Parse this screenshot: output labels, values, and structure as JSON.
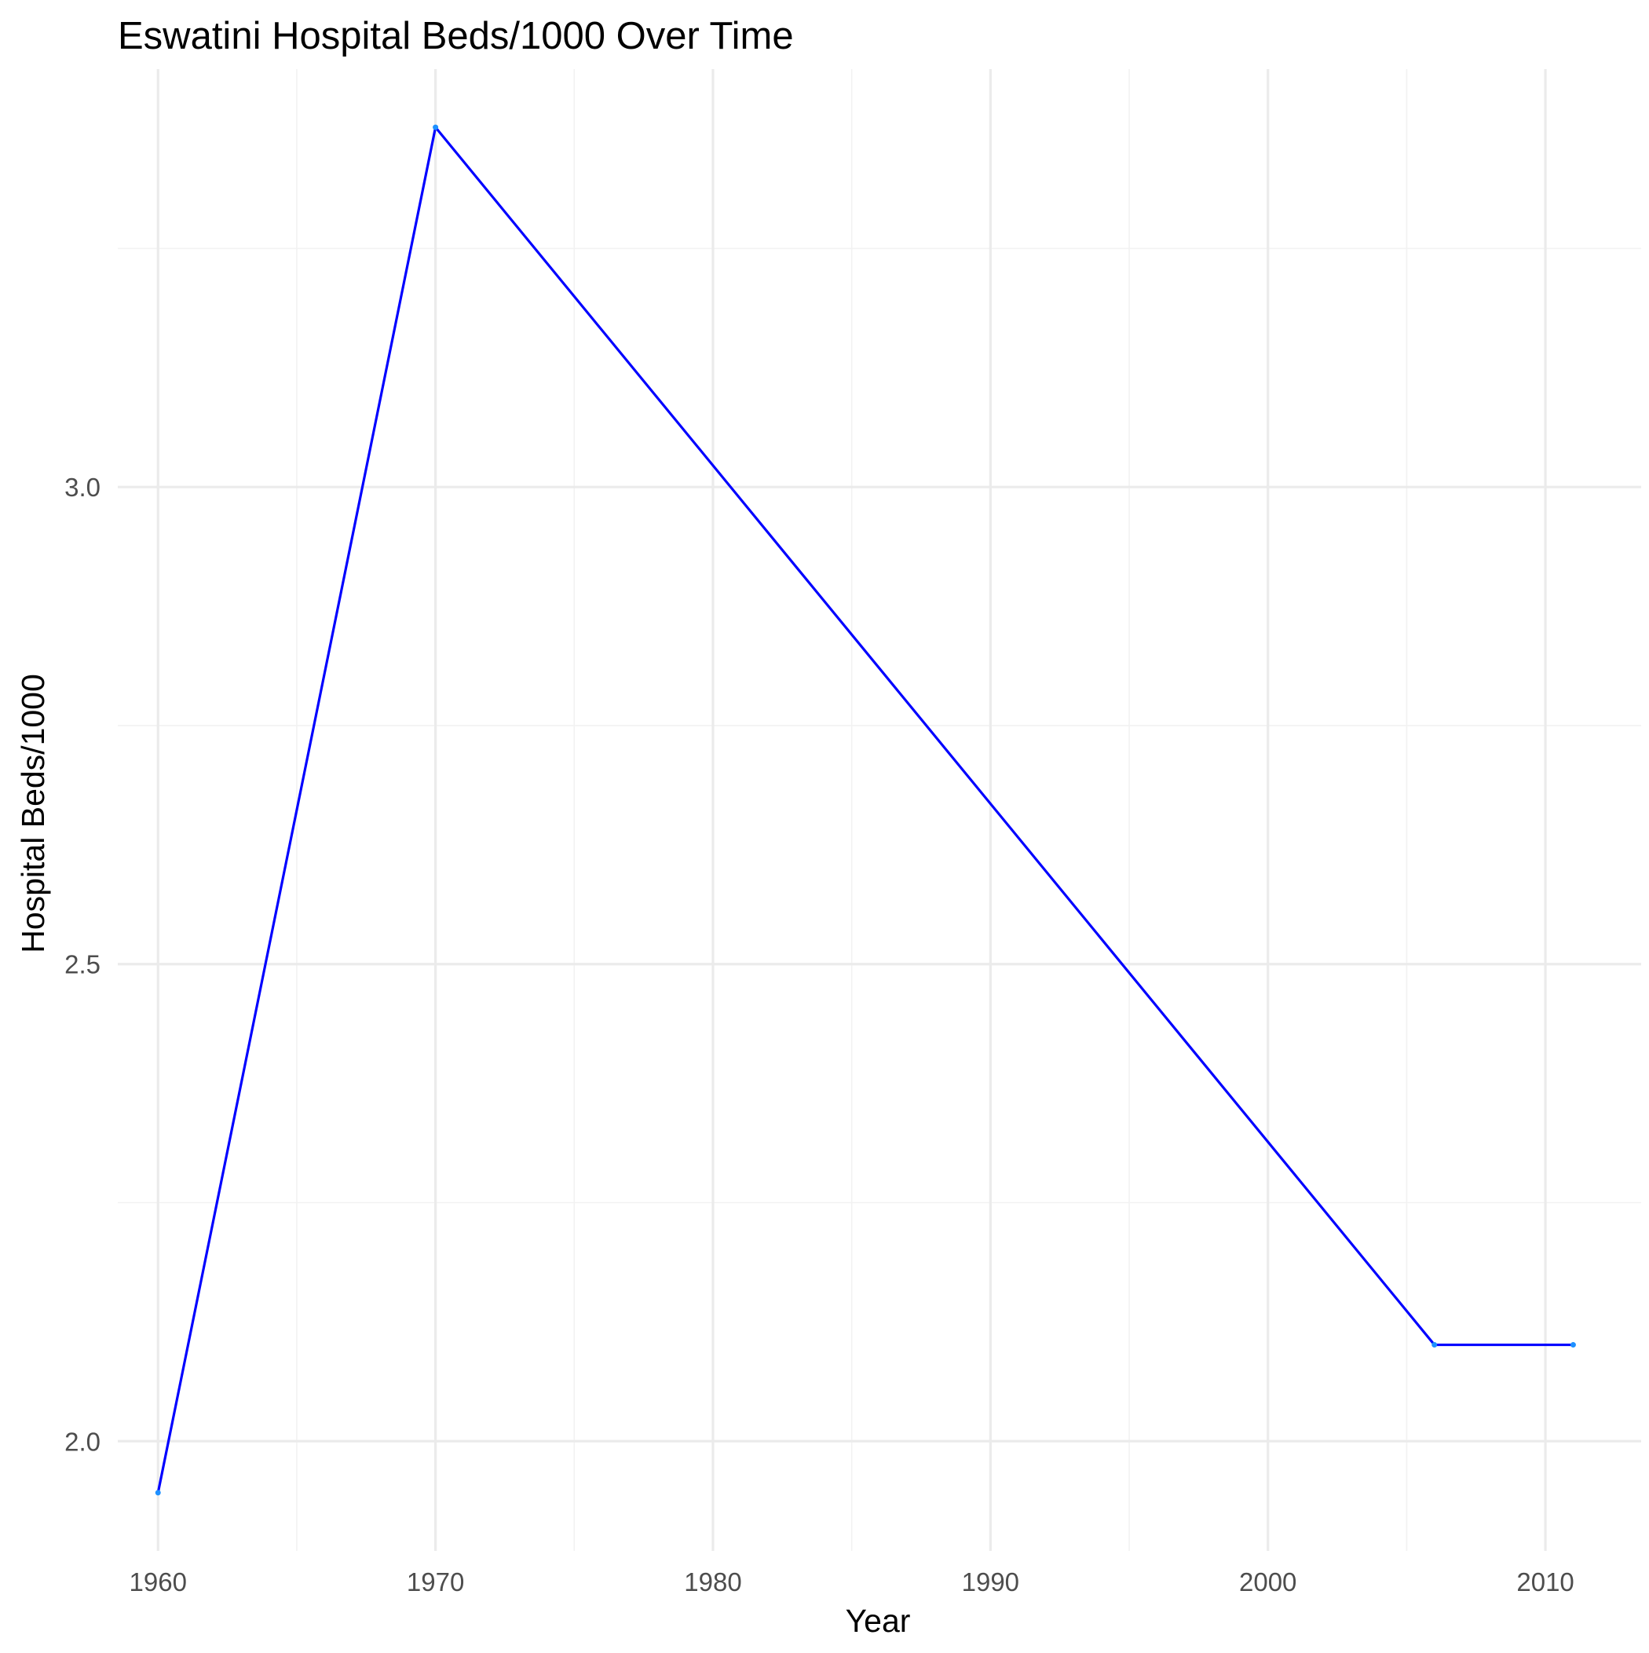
{
  "chart_data": {
    "type": "line",
    "title": "Eswatini Hospital Beds/1000 Over Time",
    "xlabel": "Year",
    "ylabel": "Hospital Beds/1000",
    "x": [
      1960,
      1970,
      2006,
      2011
    ],
    "series": [
      {
        "values": [
          1.946,
          3.377,
          2.101,
          2.101
        ]
      }
    ],
    "xlim": [
      1958.55,
      2013.45
    ],
    "ylim": [
      1.885,
      3.438
    ],
    "x_ticks": [
      1960,
      1970,
      1980,
      1990,
      2000,
      2010
    ],
    "x_tick_labels": [
      "1960",
      "1970",
      "1980",
      "1990",
      "2000",
      "2010"
    ],
    "x_minor_ticks": [
      1965,
      1975,
      1985,
      1995,
      2005
    ],
    "y_ticks": [
      2.0,
      2.5,
      3.0
    ],
    "y_tick_labels": [
      "2.0",
      "2.5",
      "3.0"
    ],
    "y_minor_ticks": [
      2.25,
      2.75,
      3.25
    ],
    "grid": true,
    "legend": "none",
    "colors": {
      "line": "#0000ff",
      "points": "#1e90ff",
      "grid_major": "#ebebeb",
      "grid_minor": "#f2f2f2",
      "tick_text": "#4d4d4d",
      "text": "#000000",
      "background": "#ffffff"
    }
  }
}
